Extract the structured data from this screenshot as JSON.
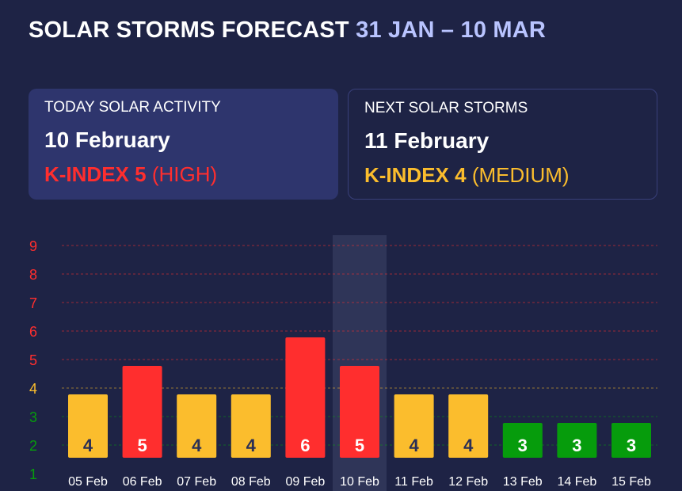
{
  "header": {
    "title": "SOLAR STORMS FORECAST",
    "range": "31 JAN – 10 MAR"
  },
  "today": {
    "label": "TODAY SOLAR ACTIVITY",
    "date": "10 February",
    "k_label": "K-INDEX 5",
    "level": "(HIGH)"
  },
  "next": {
    "label": "NEXT SOLAR STORMS",
    "date": "11 February",
    "k_label": "K-INDEX 4",
    "level": "(MEDIUM)"
  },
  "colors": {
    "background": "#1e2345",
    "high": "#ff2e2e",
    "medium": "#fbbd2d",
    "low": "#069c0c",
    "highlight": "#2f3558"
  },
  "chart_data": {
    "type": "bar",
    "categories": [
      "05 Feb",
      "06 Feb",
      "07 Feb",
      "08 Feb",
      "09 Feb",
      "10 Feb",
      "11 Feb",
      "12 Feb",
      "13 Feb",
      "14 Feb",
      "15 Feb"
    ],
    "values": [
      4,
      5,
      4,
      4,
      6,
      5,
      4,
      4,
      3,
      3,
      3
    ],
    "highlight_category": "10 Feb",
    "yticks": [
      1,
      2,
      3,
      4,
      5,
      6,
      7,
      8,
      9
    ],
    "ylim": [
      1,
      9
    ],
    "grid": true
  }
}
